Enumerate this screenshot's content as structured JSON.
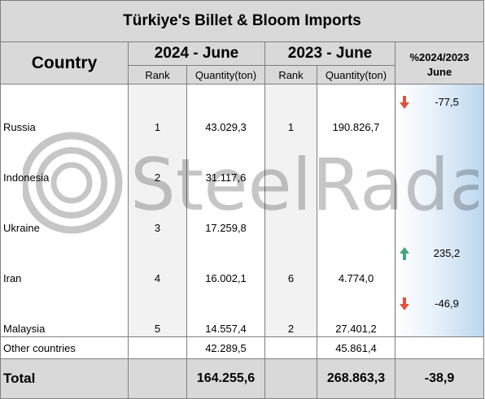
{
  "title": "Türkiye's Billet & Bloom Imports",
  "headers": {
    "country": "Country",
    "period_2024": "2024 - June",
    "period_2023": "2023 - June",
    "pct_line1": "%2024/2023",
    "pct_line2": "June",
    "rank": "Rank",
    "quantity": "Quantity(ton)"
  },
  "rows": [
    {
      "country": "Russia",
      "rank_2024": "1",
      "qty_2024": "43.029,3",
      "rank_2023": "1",
      "qty_2023": "190.826,7",
      "pct": "-77,5",
      "trend": "down"
    },
    {
      "country": "Indonesia",
      "rank_2024": "2",
      "qty_2024": "31.117,6",
      "rank_2023": "",
      "qty_2023": "",
      "pct": "",
      "trend": ""
    },
    {
      "country": "Ukraine",
      "rank_2024": "3",
      "qty_2024": "17.259,8",
      "rank_2023": "",
      "qty_2023": "",
      "pct": "",
      "trend": ""
    },
    {
      "country": "Iran",
      "rank_2024": "4",
      "qty_2024": "16.002,1",
      "rank_2023": "6",
      "qty_2023": "4.774,0",
      "pct": "235,2",
      "trend": "up"
    },
    {
      "country": "Malaysia",
      "rank_2024": "5",
      "qty_2024": "14.557,4",
      "rank_2023": "2",
      "qty_2023": "27.401,2",
      "pct": "-46,9",
      "trend": "down"
    }
  ],
  "other": {
    "label": "Other countries",
    "qty_2024": "42.289,5",
    "qty_2023": "45.861,4"
  },
  "total": {
    "label": "Total",
    "qty_2024": "164.255,6",
    "qty_2023": "268.863,3",
    "pct": "-38,9"
  },
  "watermark": "SteelRadar",
  "colors": {
    "header_bg": "#d9d9d9",
    "arrow_down": "#e0533b",
    "arrow_up": "#4aa37e",
    "pct_gradient": "#bdd7ee"
  },
  "icons": {
    "down": "arrow-down-icon",
    "up": "arrow-up-icon"
  }
}
